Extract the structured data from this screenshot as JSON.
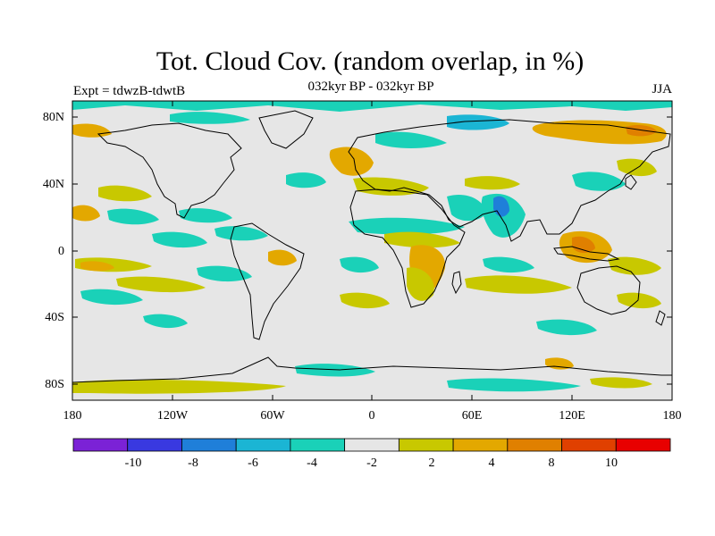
{
  "title": "Tot. Cloud Cov. (random overlap, in %)",
  "subtitle": "032kyr BP - 032kyr BP",
  "left_label": "Expt = tdwzB-tdwtB",
  "season": "JJA",
  "colors": {
    "background": "#e6e6e6",
    "coastline": "#000000",
    "colorbar": [
      "#7b22d6",
      "#3939e0",
      "#1f7fd9",
      "#1bb5d4",
      "#1ad1b8",
      "#e6e6e6",
      "#c8c800",
      "#e3a800",
      "#e08000",
      "#e04000",
      "#e80000"
    ]
  },
  "chart_data": {
    "type": "heatmap",
    "title": "Tot. Cloud Cov. (random overlap, in %)",
    "subtitle": "032kyr BP - 032kyr BP",
    "xlim": [
      -180,
      180
    ],
    "ylim": [
      -90,
      90
    ],
    "x_ticks": [
      "180",
      "120W",
      "60W",
      "0",
      "60E",
      "120E",
      "180"
    ],
    "y_ticks": [
      "80N",
      "40N",
      "0",
      "40S",
      "80S"
    ],
    "colorbar_levels": [
      "-10",
      "-8",
      "-6",
      "-4",
      "-2",
      "2",
      "4",
      "8",
      "10"
    ],
    "units": "%"
  }
}
